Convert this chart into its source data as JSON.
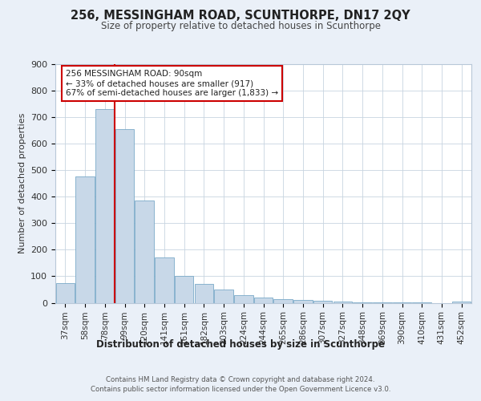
{
  "title": "256, MESSINGHAM ROAD, SCUNTHORPE, DN17 2QY",
  "subtitle": "Size of property relative to detached houses in Scunthorpe",
  "xlabel": "Distribution of detached houses by size in Scunthorpe",
  "ylabel": "Number of detached properties",
  "footnote1": "Contains HM Land Registry data © Crown copyright and database right 2024.",
  "footnote2": "Contains public sector information licensed under the Open Government Licence v3.0.",
  "annotation_line1": "256 MESSINGHAM ROAD: 90sqm",
  "annotation_line2": "← 33% of detached houses are smaller (917)",
  "annotation_line3": "67% of semi-detached houses are larger (1,833) →",
  "bar_labels": [
    "37sqm",
    "58sqm",
    "78sqm",
    "99sqm",
    "120sqm",
    "141sqm",
    "161sqm",
    "182sqm",
    "203sqm",
    "224sqm",
    "244sqm",
    "265sqm",
    "286sqm",
    "307sqm",
    "327sqm",
    "348sqm",
    "369sqm",
    "390sqm",
    "410sqm",
    "431sqm",
    "452sqm"
  ],
  "bar_values": [
    75,
    475,
    730,
    655,
    385,
    170,
    100,
    70,
    50,
    30,
    20,
    15,
    10,
    8,
    5,
    3,
    2,
    2,
    1,
    0,
    5
  ],
  "bar_color": "#c8d8e8",
  "bar_edge_color": "#7aaac8",
  "vline_color": "#cc0000",
  "annotation_box_color": "#cc0000",
  "background_color": "#eaf0f8",
  "plot_background": "#ffffff",
  "ylim": [
    0,
    900
  ],
  "yticks": [
    0,
    100,
    200,
    300,
    400,
    500,
    600,
    700,
    800,
    900
  ],
  "vline_x": 2.5
}
